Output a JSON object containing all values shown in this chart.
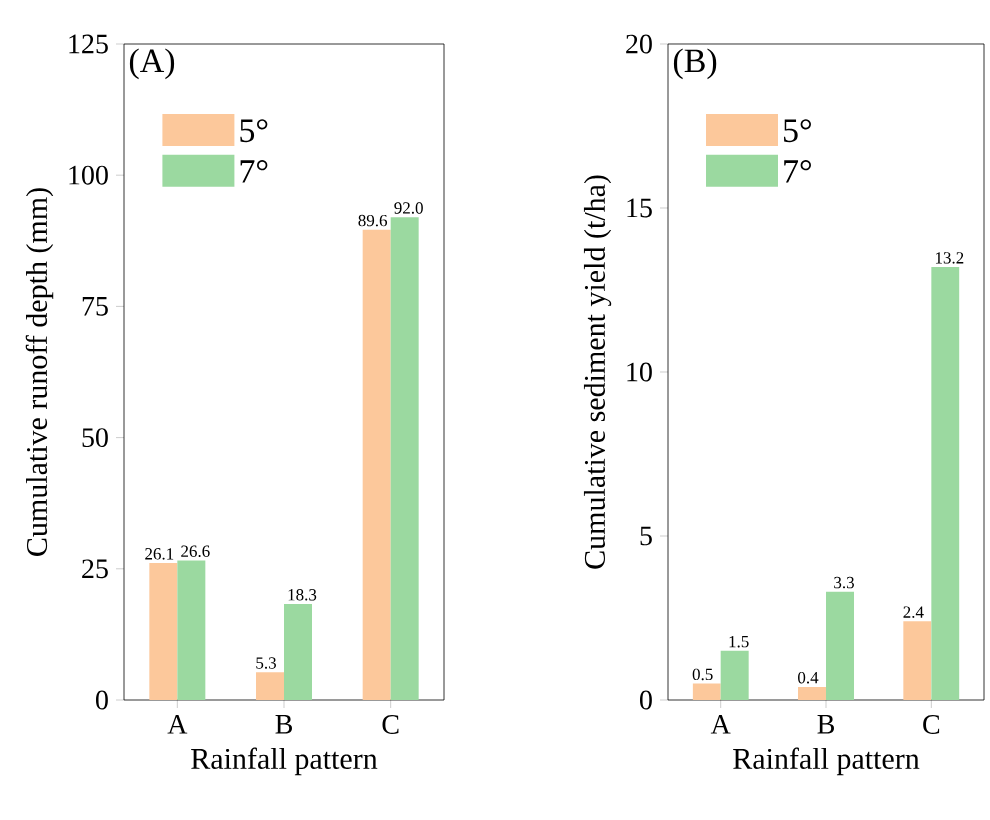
{
  "chart_data": [
    {
      "type": "bar",
      "title": "(A)",
      "xlabel": "Rainfall pattern",
      "ylabel": "Cumulative runoff depth (mm)",
      "categories": [
        "A",
        "B",
        "C"
      ],
      "series": [
        {
          "name": "5°",
          "color": "#fcc89b",
          "values": [
            26.1,
            5.3,
            89.6
          ],
          "value_labels": [
            "26.1",
            "5.3",
            "89.6"
          ]
        },
        {
          "name": "7°",
          "color": "#9bd9a0",
          "values": [
            26.6,
            18.3,
            92.0
          ],
          "value_labels": [
            "26.6",
            "18.3",
            "92.0"
          ]
        }
      ],
      "ylim": [
        0,
        125
      ],
      "yticks": [
        0,
        25,
        50,
        75,
        100,
        125
      ],
      "legend": "top left"
    },
    {
      "type": "bar",
      "title": "(B)",
      "xlabel": "Rainfall pattern",
      "ylabel": "Cumulative sediment yield (t/ha)",
      "categories": [
        "A",
        "B",
        "C"
      ],
      "series": [
        {
          "name": "5°",
          "color": "#fcc89b",
          "values": [
            0.5,
            0.4,
            2.4
          ],
          "value_labels": [
            "0.5",
            "0.4",
            "2.4"
          ]
        },
        {
          "name": "7°",
          "color": "#9bd9a0",
          "values": [
            1.5,
            3.3,
            13.2
          ],
          "value_labels": [
            "1.5",
            "3.3",
            "13.2"
          ]
        }
      ],
      "ylim": [
        0,
        20
      ],
      "yticks": [
        0,
        5,
        10,
        15,
        20
      ],
      "legend": "top left"
    }
  ]
}
